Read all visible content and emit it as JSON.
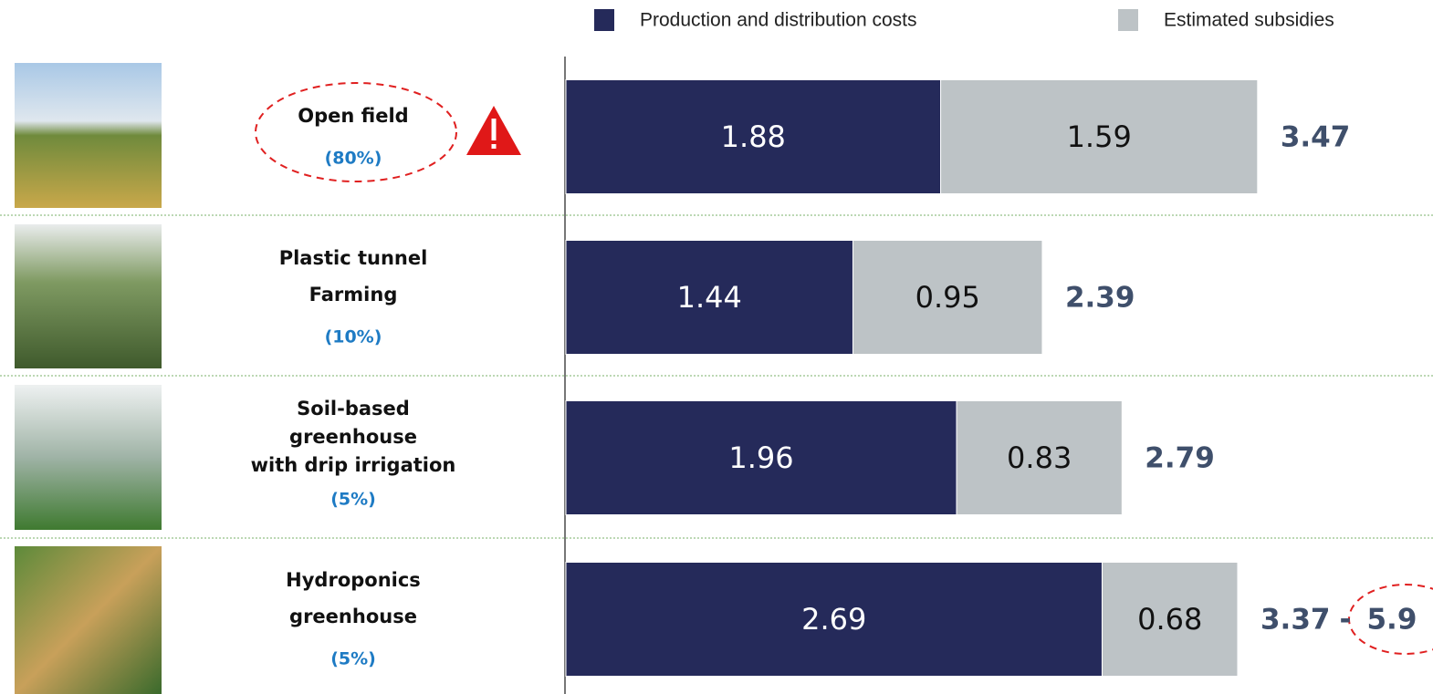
{
  "chart_data": {
    "type": "stacked-barh",
    "categories": [
      "Open field",
      "Plastic tunnel\nFarming",
      "Soil-based\ngreenhouse\nwith drip irrigation",
      "Hydroponics\ngreenhouse"
    ],
    "shares": [
      80,
      10,
      5,
      5
    ],
    "share_labels": [
      "(80%)",
      "(10%)",
      "(5%)",
      "(5%)"
    ],
    "series": [
      {
        "name": "Production and  distribution costs",
        "color": "#252a5a",
        "values": [
          1.88,
          1.44,
          1.96,
          2.69
        ]
      },
      {
        "name": "Estimated subsidies",
        "color": "#bdc3c6",
        "values": [
          1.59,
          0.95,
          0.83,
          0.68
        ]
      }
    ],
    "totals": [
      3.47,
      2.39,
      2.79,
      3.37
    ],
    "total_upper": [
      null,
      null,
      null,
      5.9
    ],
    "range_separator": "-",
    "xlim": [
      0,
      4.35
    ]
  }
}
